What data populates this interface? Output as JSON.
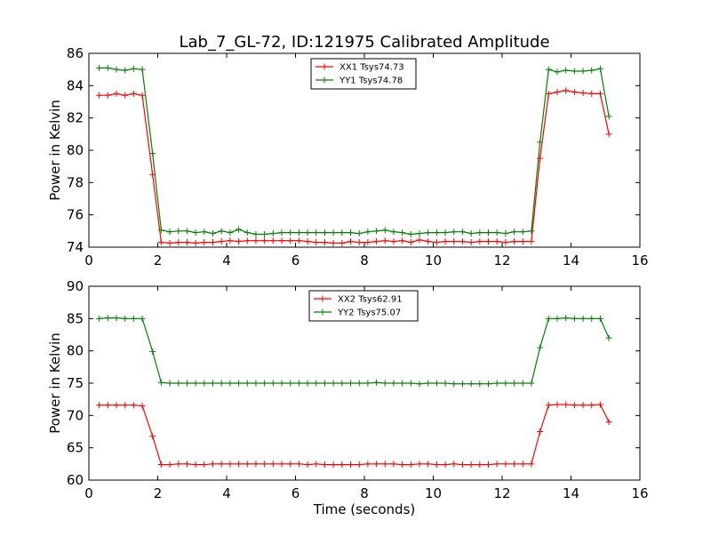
{
  "title": "Lab_7_GL-72, ID:121975 Calibrated Amplitude",
  "chart_data": [
    {
      "type": "line",
      "ylabel": "Power in Kelvin",
      "xlabel": "",
      "xlim": [
        0,
        16
      ],
      "ylim": [
        74,
        86
      ],
      "xticks": [
        0,
        2,
        4,
        6,
        8,
        10,
        12,
        14,
        16
      ],
      "yticks": [
        74,
        76,
        78,
        80,
        82,
        84,
        86
      ],
      "legend_position": "top-center",
      "x": [
        0.3,
        0.55,
        0.8,
        1.05,
        1.3,
        1.55,
        1.85,
        2.1,
        2.35,
        2.6,
        2.85,
        3.1,
        3.35,
        3.6,
        3.85,
        4.1,
        4.35,
        4.6,
        4.85,
        5.1,
        5.35,
        5.6,
        5.85,
        6.1,
        6.35,
        6.6,
        6.85,
        7.1,
        7.35,
        7.6,
        7.85,
        8.1,
        8.35,
        8.6,
        8.85,
        9.1,
        9.35,
        9.6,
        9.85,
        10.1,
        10.35,
        10.6,
        10.85,
        11.1,
        11.35,
        11.6,
        11.85,
        12.1,
        12.35,
        12.6,
        12.85,
        13.1,
        13.35,
        13.6,
        13.85,
        14.1,
        14.35,
        14.6,
        14.85,
        15.1
      ],
      "series": [
        {
          "name": "XX1 Tsys74.73",
          "color": "#ff0000",
          "values": [
            83.4,
            83.4,
            83.5,
            83.4,
            83.5,
            83.4,
            78.5,
            74.3,
            74.25,
            74.3,
            74.3,
            74.25,
            74.3,
            74.3,
            74.35,
            74.4,
            74.35,
            74.4,
            74.4,
            74.4,
            74.4,
            74.4,
            74.4,
            74.4,
            74.35,
            74.3,
            74.3,
            74.25,
            74.25,
            74.35,
            74.3,
            74.3,
            74.35,
            74.4,
            74.35,
            74.4,
            74.3,
            74.45,
            74.35,
            74.3,
            74.35,
            74.35,
            74.35,
            74.3,
            74.35,
            74.35,
            74.35,
            74.3,
            74.35,
            74.35,
            74.35,
            79.5,
            83.5,
            83.6,
            83.7,
            83.6,
            83.55,
            83.5,
            83.5,
            81.0
          ]
        },
        {
          "name": "YY1 Tsys74.78",
          "color": "#008000",
          "values": [
            85.1,
            85.1,
            85.0,
            84.95,
            85.05,
            85.0,
            79.8,
            75.05,
            74.95,
            75.0,
            75.0,
            74.9,
            74.95,
            74.85,
            75.0,
            74.9,
            75.1,
            74.9,
            74.8,
            74.8,
            74.85,
            74.9,
            74.9,
            74.9,
            74.9,
            74.9,
            74.9,
            74.9,
            74.9,
            74.9,
            74.85,
            74.95,
            75.0,
            75.05,
            74.95,
            74.9,
            74.8,
            74.85,
            74.9,
            74.9,
            74.9,
            74.95,
            74.95,
            74.85,
            74.9,
            74.9,
            74.9,
            74.85,
            74.95,
            74.95,
            75.0,
            80.5,
            85.0,
            84.85,
            84.95,
            84.9,
            84.9,
            84.95,
            85.05,
            82.1
          ]
        }
      ]
    },
    {
      "type": "line",
      "ylabel": "Power in Kelvin",
      "xlabel": "Time (seconds)",
      "xlim": [
        0,
        16
      ],
      "ylim": [
        60,
        90
      ],
      "xticks": [
        0,
        2,
        4,
        6,
        8,
        10,
        12,
        14,
        16
      ],
      "yticks": [
        60,
        65,
        70,
        75,
        80,
        85,
        90
      ],
      "legend_position": "top-center",
      "x": [
        0.3,
        0.55,
        0.8,
        1.05,
        1.3,
        1.55,
        1.85,
        2.1,
        2.35,
        2.6,
        2.85,
        3.1,
        3.35,
        3.6,
        3.85,
        4.1,
        4.35,
        4.6,
        4.85,
        5.1,
        5.35,
        5.6,
        5.85,
        6.1,
        6.35,
        6.6,
        6.85,
        7.1,
        7.35,
        7.6,
        7.85,
        8.1,
        8.35,
        8.6,
        8.85,
        9.1,
        9.35,
        9.6,
        9.85,
        10.1,
        10.35,
        10.6,
        10.85,
        11.1,
        11.35,
        11.6,
        11.85,
        12.1,
        12.35,
        12.6,
        12.85,
        13.1,
        13.35,
        13.6,
        13.85,
        14.1,
        14.35,
        14.6,
        14.85,
        15.1
      ],
      "series": [
        {
          "name": "XX2 Tsys62.91",
          "color": "#ff0000",
          "values": [
            71.6,
            71.6,
            71.6,
            71.6,
            71.6,
            71.5,
            66.8,
            62.4,
            62.4,
            62.5,
            62.5,
            62.4,
            62.4,
            62.5,
            62.5,
            62.5,
            62.5,
            62.5,
            62.5,
            62.5,
            62.5,
            62.5,
            62.5,
            62.5,
            62.4,
            62.5,
            62.4,
            62.4,
            62.4,
            62.4,
            62.4,
            62.5,
            62.5,
            62.5,
            62.5,
            62.4,
            62.4,
            62.5,
            62.5,
            62.4,
            62.4,
            62.5,
            62.4,
            62.4,
            62.4,
            62.4,
            62.5,
            62.5,
            62.5,
            62.5,
            62.5,
            67.5,
            71.6,
            71.7,
            71.7,
            71.6,
            71.6,
            71.6,
            71.7,
            69.0
          ]
        },
        {
          "name": "YY2 Tsys75.07",
          "color": "#008000",
          "values": [
            85.0,
            85.1,
            85.1,
            85.0,
            85.0,
            85.0,
            79.9,
            75.1,
            75.0,
            75.0,
            75.0,
            75.0,
            75.0,
            75.0,
            75.0,
            75.0,
            75.0,
            75.0,
            75.0,
            75.0,
            75.0,
            75.0,
            75.0,
            75.0,
            75.0,
            75.0,
            75.0,
            75.0,
            75.0,
            75.0,
            75.0,
            75.0,
            75.1,
            75.0,
            75.0,
            75.0,
            75.0,
            74.9,
            75.0,
            75.0,
            75.0,
            74.9,
            74.9,
            74.9,
            74.9,
            74.9,
            75.0,
            75.0,
            75.0,
            75.0,
            75.0,
            80.5,
            85.0,
            85.0,
            85.1,
            85.0,
            85.0,
            85.0,
            85.0,
            82.0
          ]
        }
      ]
    }
  ]
}
